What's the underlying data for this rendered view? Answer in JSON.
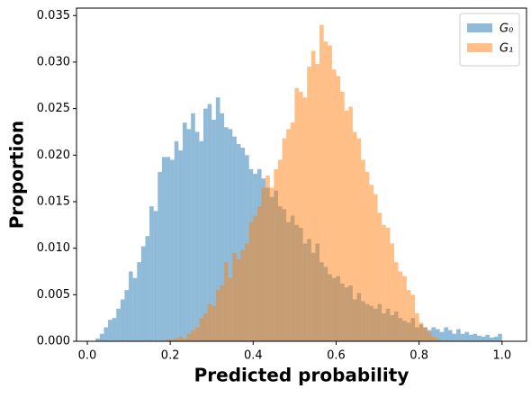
{
  "chart_data": {
    "type": "histogram",
    "xlabel": "Predicted probability",
    "ylabel": "Proportion",
    "bins": [
      0.0,
      0.01,
      0.02,
      0.03,
      0.04,
      0.05,
      0.06,
      0.07,
      0.08,
      0.09,
      0.1,
      0.11,
      0.12,
      0.13,
      0.14,
      0.15,
      0.16,
      0.17,
      0.18,
      0.19,
      0.2,
      0.21,
      0.22,
      0.23,
      0.24,
      0.25,
      0.26,
      0.27,
      0.28,
      0.29,
      0.3,
      0.31,
      0.32,
      0.33,
      0.34,
      0.35,
      0.36,
      0.37,
      0.38,
      0.39,
      0.4,
      0.41,
      0.42,
      0.43,
      0.44,
      0.45,
      0.46,
      0.47,
      0.48,
      0.49,
      0.5,
      0.51,
      0.52,
      0.53,
      0.54,
      0.55,
      0.56,
      0.57,
      0.58,
      0.59,
      0.6,
      0.61,
      0.62,
      0.63,
      0.64,
      0.65,
      0.66,
      0.67,
      0.68,
      0.69,
      0.7,
      0.71,
      0.72,
      0.73,
      0.74,
      0.75,
      0.76,
      0.77,
      0.78,
      0.79,
      0.8,
      0.81,
      0.82,
      0.83,
      0.84,
      0.85,
      0.86,
      0.87,
      0.88,
      0.89,
      0.9,
      0.91,
      0.92,
      0.93,
      0.94,
      0.95,
      0.96,
      0.97,
      0.98,
      0.99,
      1.0
    ],
    "series": [
      {
        "name": "G₀",
        "color": "#1f77b4",
        "opacity": 0.5,
        "values": [
          0,
          0,
          0.0003,
          0.0008,
          0.0015,
          0.0023,
          0.0025,
          0.0035,
          0.0045,
          0.0055,
          0.0075,
          0.0068,
          0.0085,
          0.0102,
          0.0113,
          0.0145,
          0.014,
          0.0182,
          0.0198,
          0.0198,
          0.0195,
          0.0215,
          0.0205,
          0.0235,
          0.0228,
          0.0245,
          0.0225,
          0.0215,
          0.025,
          0.0255,
          0.0238,
          0.0262,
          0.0245,
          0.023,
          0.0228,
          0.022,
          0.0212,
          0.0208,
          0.02,
          0.0185,
          0.018,
          0.0185,
          0.0175,
          0.0165,
          0.0155,
          0.0162,
          0.0145,
          0.0142,
          0.0128,
          0.0135,
          0.0125,
          0.0122,
          0.0105,
          0.011,
          0.0095,
          0.0105,
          0.0085,
          0.008,
          0.0072,
          0.0068,
          0.007,
          0.0062,
          0.0058,
          0.006,
          0.0045,
          0.0052,
          0.0043,
          0.004,
          0.0038,
          0.0035,
          0.004,
          0.003,
          0.0035,
          0.0028,
          0.0032,
          0.0025,
          0.0022,
          0.002,
          0.0025,
          0.0015,
          0.0018,
          0.0015,
          0.0012,
          0.0015,
          0.0013,
          0.001,
          0.0015,
          0.0012,
          0.0008,
          0.0013,
          0.0008,
          0.001,
          0.0007,
          0.0008,
          0.0006,
          0.0005,
          0.0007,
          0.0004,
          0.0005,
          0.0008
        ]
      },
      {
        "name": "G₁",
        "color": "#ff7f0e",
        "opacity": 0.5,
        "values": [
          0,
          0,
          0,
          0,
          0,
          0,
          0,
          0,
          0,
          0,
          0,
          0,
          0,
          0,
          0,
          0,
          0,
          0,
          0,
          0.0002,
          0.0002,
          0.0003,
          0.0005,
          0.0003,
          0.0008,
          0.0012,
          0.0015,
          0.0025,
          0.003,
          0.004,
          0.0038,
          0.0055,
          0.006,
          0.0085,
          0.0068,
          0.0095,
          0.0088,
          0.0098,
          0.0105,
          0.0128,
          0.0135,
          0.0145,
          0.0165,
          0.0178,
          0.0165,
          0.0185,
          0.0195,
          0.0218,
          0.0228,
          0.0235,
          0.0272,
          0.0268,
          0.0262,
          0.0295,
          0.0312,
          0.0298,
          0.034,
          0.0322,
          0.0318,
          0.0292,
          0.0285,
          0.0268,
          0.0248,
          0.0252,
          0.0225,
          0.0218,
          0.0195,
          0.0182,
          0.0168,
          0.0158,
          0.0138,
          0.0125,
          0.0122,
          0.0105,
          0.0085,
          0.0075,
          0.007,
          0.0055,
          0.005,
          0.003,
          0.002,
          0.0015,
          0.001,
          0.0005,
          0.0003,
          0,
          0,
          0,
          0,
          0,
          0,
          0,
          0,
          0,
          0,
          0,
          0,
          0,
          0,
          0
        ]
      }
    ],
    "xlim": [
      -0.026,
      1.059
    ],
    "ylim": [
      0,
      0.0358
    ],
    "xticks": [
      {
        "value": 0,
        "label": "0.0"
      },
      {
        "value": 0.2,
        "label": "0.2"
      },
      {
        "value": 0.4,
        "label": "0.4"
      },
      {
        "value": 0.6,
        "label": "0.6"
      },
      {
        "value": 0.8,
        "label": "0.8"
      },
      {
        "value": 1,
        "label": "1.0"
      }
    ],
    "yticks": [
      {
        "value": 0,
        "label": "0.000"
      },
      {
        "value": 0.005,
        "label": "0.005"
      },
      {
        "value": 0.01,
        "label": "0.010"
      },
      {
        "value": 0.015,
        "label": "0.015"
      },
      {
        "value": 0.02,
        "label": "0.020"
      },
      {
        "value": 0.025,
        "label": "0.025"
      },
      {
        "value": 0.03,
        "label": "0.030"
      },
      {
        "value": 0.035,
        "label": "0.035"
      }
    ],
    "legend": "upper right"
  }
}
